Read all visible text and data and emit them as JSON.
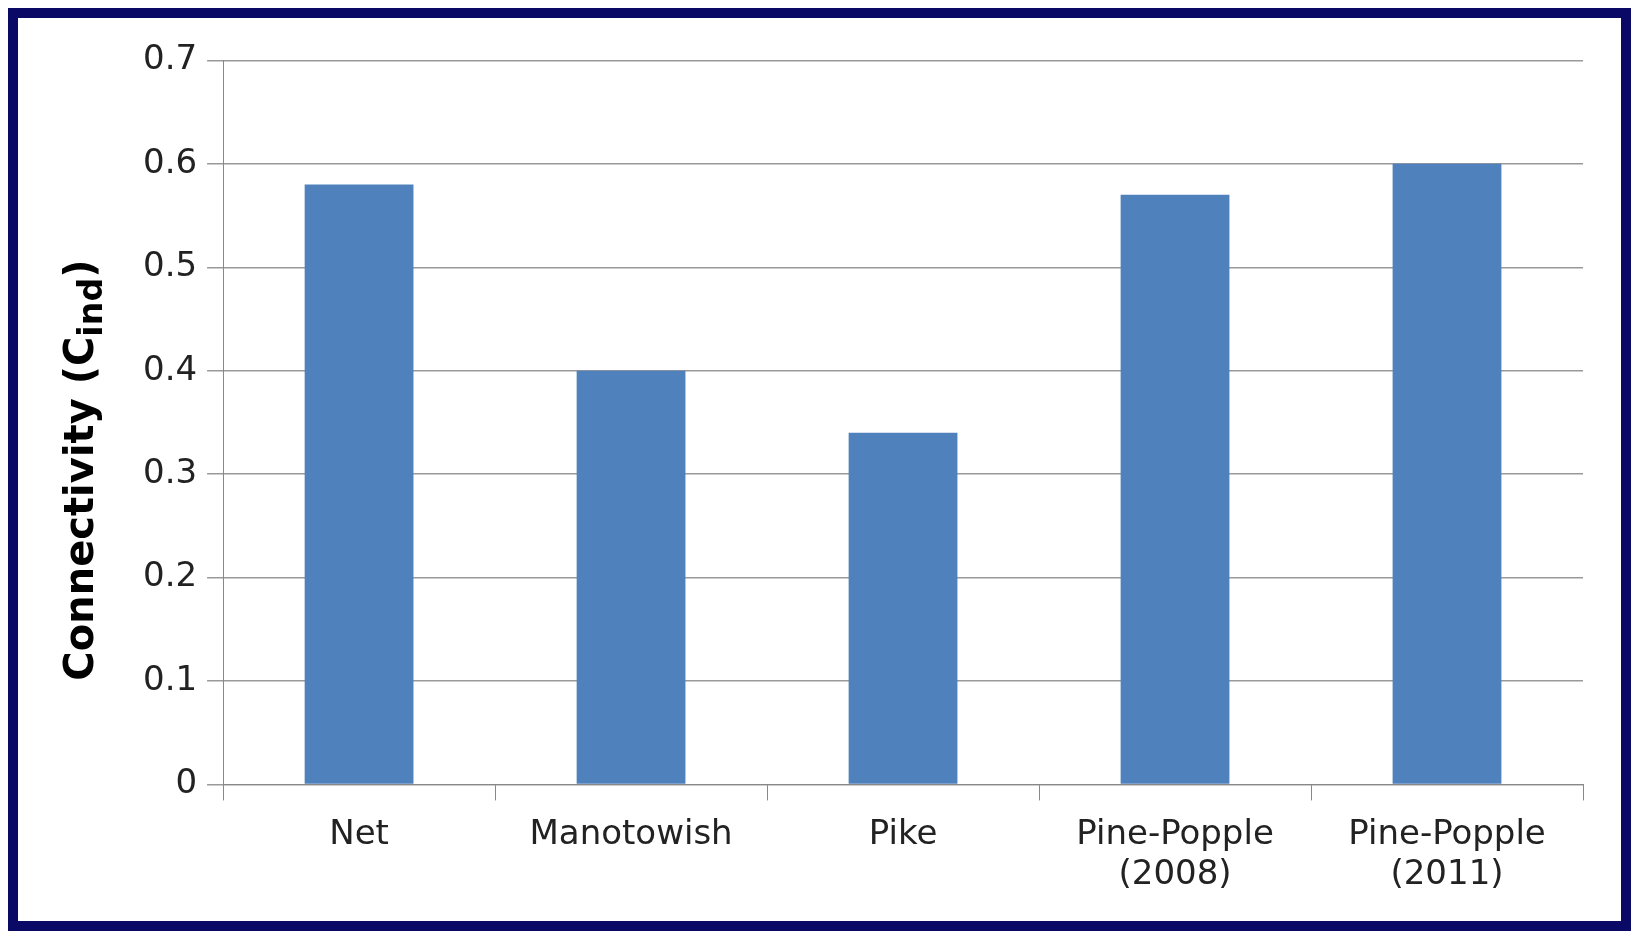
{
  "chart_data": {
    "type": "bar",
    "ylabel": "Connectivity (C$_{ind}$)",
    "categories": [
      "Net",
      "Manotowish",
      "Pike",
      "Pine-Popple (2008)",
      "Pine-Popple (2011)"
    ],
    "values": [
      0.58,
      0.4,
      0.34,
      0.57,
      0.6
    ],
    "color": "#4f81bd",
    "ylim": [
      0,
      0.7
    ],
    "yticks": [
      0,
      0.1,
      0.2,
      0.3,
      0.4,
      0.5,
      0.6,
      0.7
    ],
    "grid": "y",
    "legend": false
  }
}
